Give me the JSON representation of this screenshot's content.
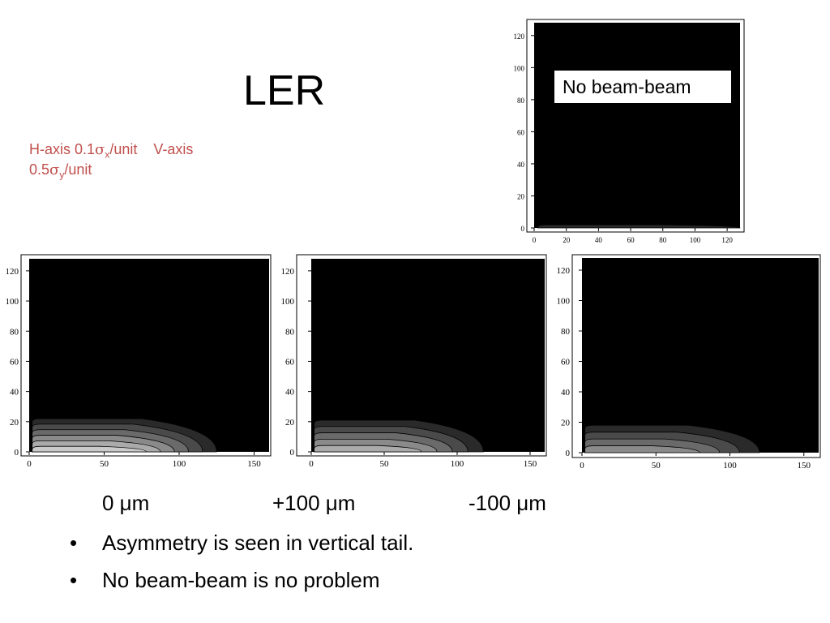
{
  "slide": {
    "title": "LER",
    "axis_note": {
      "h_prefix": "H-axis 0.1",
      "sigma": "σ",
      "h_sub": "x",
      "h_suffix": "/unit",
      "v_text": "V-axis",
      "v_prefix": "0.5",
      "v_sub": "y",
      "v_suffix": "/unit"
    },
    "inset_label": "No beam-beam",
    "offset_labels": [
      "0 μm",
      "+100 μm",
      "-100 μm"
    ],
    "bullets": [
      "Asymmetry is seen in vertical tail.",
      "No beam-beam is no problem"
    ],
    "bullet_symbol": "•"
  },
  "chart_data": [
    {
      "type": "heatmap",
      "name": "No beam-beam",
      "xticks": [
        0,
        20,
        40,
        60,
        80,
        100,
        120
      ],
      "yticks": [
        0,
        20,
        40,
        60,
        80,
        100,
        120
      ],
      "xlim": [
        0,
        128
      ],
      "ylim": [
        0,
        128
      ],
      "background": "#000000",
      "contour_extent_x": [
        0,
        128
      ],
      "contour_extent_y": [
        0,
        2
      ],
      "levels": 1
    },
    {
      "type": "heatmap",
      "name": "0 μm",
      "xticks": [
        0,
        50,
        100,
        150
      ],
      "yticks": [
        0,
        20,
        40,
        60,
        80,
        100,
        120
      ],
      "xlim": [
        0,
        160
      ],
      "ylim": [
        0,
        128
      ],
      "background": "#000000",
      "contour_extent_x": [
        0,
        125
      ],
      "contour_extent_y": [
        0,
        22
      ],
      "levels": 6
    },
    {
      "type": "heatmap",
      "name": "+100 μm",
      "xticks": [
        0,
        50,
        100,
        150
      ],
      "yticks": [
        0,
        20,
        40,
        60,
        80,
        100,
        120
      ],
      "xlim": [
        0,
        160
      ],
      "ylim": [
        0,
        128
      ],
      "background": "#000000",
      "contour_extent_x": [
        0,
        118
      ],
      "contour_extent_y": [
        0,
        21
      ],
      "levels": 5
    },
    {
      "type": "heatmap",
      "name": "-100 μm",
      "xticks": [
        0,
        50,
        100,
        150
      ],
      "yticks": [
        0,
        20,
        40,
        60,
        80,
        100,
        120
      ],
      "xlim": [
        0,
        160
      ],
      "ylim": [
        0,
        128
      ],
      "background": "#000000",
      "contour_extent_x": [
        0,
        120
      ],
      "contour_extent_y": [
        0,
        18
      ],
      "levels": 4
    }
  ]
}
